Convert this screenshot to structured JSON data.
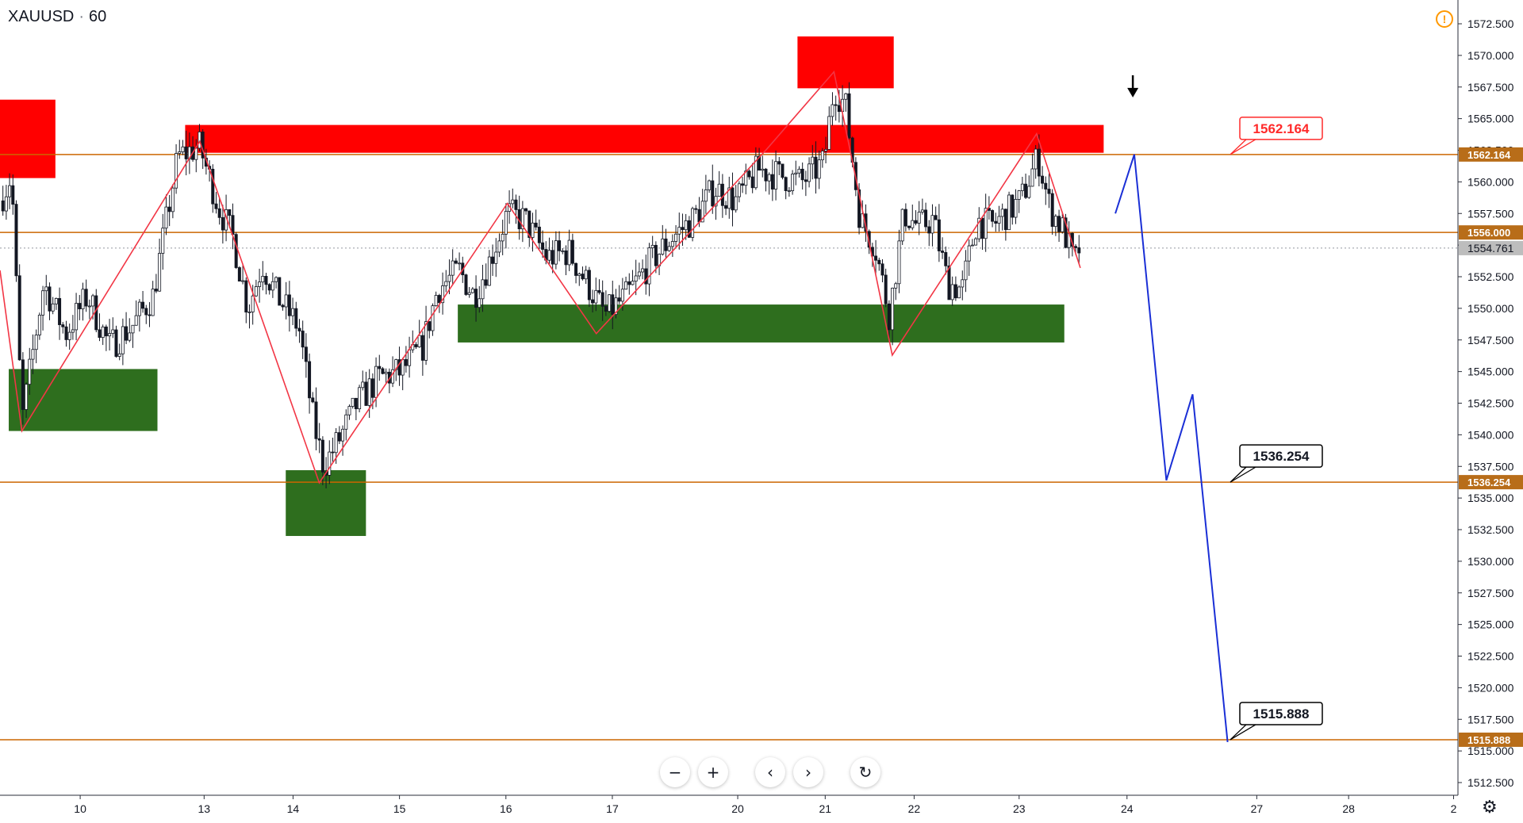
{
  "header": {
    "symbol": "XAUUSD",
    "interval": "60",
    "separator": "·"
  },
  "toolbar": {
    "zoom_out_icon": "minus-icon",
    "zoom_in_icon": "plus-icon",
    "scroll_left_icon": "chevron-left-icon",
    "scroll_right_icon": "chevron-right-icon",
    "reset_icon": "reset-icon"
  },
  "colors": {
    "resistance": "#ff0000",
    "support": "#2e6e1e",
    "level_line": "#cc6600",
    "zigzag": "#f23645",
    "projection": "#1a2fd6",
    "candle": "#131722",
    "current_price_bg": "#bdbdbd"
  },
  "chart_data": {
    "type": "candlestick",
    "y_axis": {
      "range": [
        1511.0,
        1574.0
      ],
      "ticks": [
        "1572.500",
        "1570.000",
        "1567.500",
        "1565.000",
        "1562.500",
        "1560.000",
        "1557.500",
        "1555.000",
        "1552.500",
        "1550.000",
        "1547.500",
        "1545.000",
        "1542.500",
        "1540.000",
        "1537.500",
        "1535.000",
        "1532.500",
        "1530.000",
        "1527.500",
        "1525.000",
        "1522.500",
        "1520.000",
        "1517.500",
        "1515.000",
        "1512.500"
      ]
    },
    "x_axis": {
      "ticks": [
        {
          "label": "10",
          "pos": 0.055
        },
        {
          "label": "13",
          "pos": 0.14
        },
        {
          "label": "14",
          "pos": 0.201
        },
        {
          "label": "15",
          "pos": 0.274
        },
        {
          "label": "16",
          "pos": 0.347
        },
        {
          "label": "17",
          "pos": 0.42
        },
        {
          "label": "20",
          "pos": 0.506
        },
        {
          "label": "21",
          "pos": 0.566
        },
        {
          "label": "22",
          "pos": 0.627
        },
        {
          "label": "23",
          "pos": 0.699
        },
        {
          "label": "24",
          "pos": 0.773
        },
        {
          "label": "27",
          "pos": 0.862
        },
        {
          "label": "28",
          "pos": 0.925
        },
        {
          "label": "2",
          "pos": 0.997
        }
      ]
    },
    "levels": [
      {
        "price": 1562.164,
        "label": "1562.164",
        "axis_bg": "#b86d19"
      },
      {
        "price": 1556.0,
        "label": "1556.000",
        "axis_bg": "#b86d19"
      },
      {
        "price": 1536.254,
        "label": "1536.254",
        "axis_bg": "#b86d19"
      },
      {
        "price": 1515.888,
        "label": "1515.888",
        "axis_bg": "#b86d19"
      }
    ],
    "current_price": {
      "price": 1554.761,
      "label": "1554.761"
    },
    "callouts": [
      {
        "text": "1562.164",
        "price": 1562.164,
        "pos": 0.845,
        "style": "red"
      },
      {
        "text": "1536.254",
        "price": 1536.254,
        "pos": 0.845,
        "style": "black"
      },
      {
        "text": "1515.888",
        "price": 1515.888,
        "pos": 0.845,
        "style": "black"
      }
    ],
    "resistance_zones": [
      {
        "x0": 0.0,
        "x1": 0.038,
        "top": 1566.5,
        "bottom": 1560.3
      },
      {
        "x0": 0.127,
        "x1": 0.757,
        "top": 1564.5,
        "bottom": 1562.3
      },
      {
        "x0": 0.547,
        "x1": 0.613,
        "top": 1571.5,
        "bottom": 1567.4
      }
    ],
    "support_zones": [
      {
        "x0": 0.006,
        "x1": 0.108,
        "top": 1545.2,
        "bottom": 1540.3
      },
      {
        "x0": 0.196,
        "x1": 0.251,
        "top": 1537.2,
        "bottom": 1532.0
      },
      {
        "x0": 0.314,
        "x1": 0.73,
        "top": 1550.3,
        "bottom": 1547.3
      }
    ],
    "zigzag": [
      [
        0.0,
        1553.0
      ],
      [
        0.015,
        1540.3
      ],
      [
        0.137,
        1563.2
      ],
      [
        0.219,
        1536.2
      ],
      [
        0.348,
        1558.3
      ],
      [
        0.409,
        1548.0
      ],
      [
        0.526,
        1562.6
      ],
      [
        0.572,
        1568.7
      ],
      [
        0.612,
        1546.3
      ],
      [
        0.711,
        1563.8
      ],
      [
        0.741,
        1553.2
      ]
    ],
    "projection": [
      [
        0.765,
        1557.5
      ],
      [
        0.778,
        1562.164
      ],
      [
        0.8,
        1536.4
      ],
      [
        0.818,
        1543.2
      ],
      [
        0.842,
        1515.7
      ]
    ],
    "arrow_down": {
      "pos": 0.777,
      "price": 1566.8
    },
    "candle_path": [
      [
        0.0,
        1558.5
      ],
      [
        0.008,
        1560.5
      ],
      [
        0.015,
        1541.0
      ],
      [
        0.03,
        1552.0
      ],
      [
        0.045,
        1548.0
      ],
      [
        0.06,
        1551.0
      ],
      [
        0.075,
        1547.0
      ],
      [
        0.09,
        1548.5
      ],
      [
        0.105,
        1551.0
      ],
      [
        0.115,
        1557.5
      ],
      [
        0.122,
        1562.0
      ],
      [
        0.137,
        1562.8
      ],
      [
        0.15,
        1558.0
      ],
      [
        0.16,
        1555.5
      ],
      [
        0.17,
        1550.0
      ],
      [
        0.18,
        1553.5
      ],
      [
        0.19,
        1551.0
      ],
      [
        0.205,
        1548.5
      ],
      [
        0.215,
        1541.0
      ],
      [
        0.222,
        1537.5
      ],
      [
        0.232,
        1539.5
      ],
      [
        0.245,
        1542.5
      ],
      [
        0.26,
        1544.5
      ],
      [
        0.275,
        1545.0
      ],
      [
        0.29,
        1547.0
      ],
      [
        0.3,
        1551.5
      ],
      [
        0.315,
        1553.0
      ],
      [
        0.325,
        1551.0
      ],
      [
        0.335,
        1553.5
      ],
      [
        0.348,
        1557.5
      ],
      [
        0.36,
        1557.0
      ],
      [
        0.375,
        1554.0
      ],
      [
        0.39,
        1554.5
      ],
      [
        0.405,
        1551.5
      ],
      [
        0.415,
        1549.5
      ],
      [
        0.43,
        1551.0
      ],
      [
        0.445,
        1553.5
      ],
      [
        0.46,
        1555.5
      ],
      [
        0.475,
        1557.0
      ],
      [
        0.49,
        1559.5
      ],
      [
        0.505,
        1558.5
      ],
      [
        0.52,
        1561.0
      ],
      [
        0.535,
        1560.5
      ],
      [
        0.55,
        1560.0
      ],
      [
        0.565,
        1561.5
      ],
      [
        0.572,
        1567.5
      ],
      [
        0.58,
        1566.0
      ],
      [
        0.59,
        1557.0
      ],
      [
        0.6,
        1555.0
      ],
      [
        0.61,
        1549.5
      ],
      [
        0.62,
        1557.5
      ],
      [
        0.63,
        1556.5
      ],
      [
        0.64,
        1557.0
      ],
      [
        0.65,
        1552.0
      ],
      [
        0.66,
        1551.5
      ],
      [
        0.67,
        1557.0
      ],
      [
        0.68,
        1556.5
      ],
      [
        0.69,
        1557.5
      ],
      [
        0.7,
        1558.5
      ],
      [
        0.712,
        1562.0
      ],
      [
        0.72,
        1558.0
      ],
      [
        0.73,
        1556.0
      ],
      [
        0.737,
        1553.5
      ],
      [
        0.742,
        1555.5
      ]
    ]
  }
}
